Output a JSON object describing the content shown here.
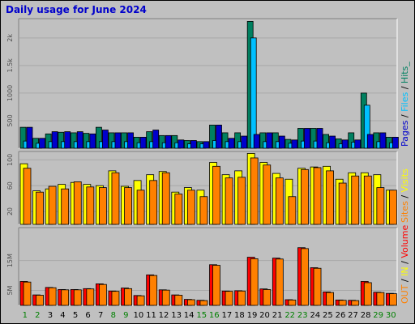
{
  "chart_data": {
    "type": "bar",
    "title": "Daily usage for June 2024",
    "categories": [
      "1",
      "2",
      "3",
      "4",
      "5",
      "6",
      "7",
      "8",
      "9",
      "10",
      "11",
      "12",
      "13",
      "14",
      "15",
      "16",
      "17",
      "18",
      "19",
      "20",
      "21",
      "22",
      "23",
      "24",
      "25",
      "26",
      "27",
      "28",
      "29",
      "30"
    ],
    "weekend_days": [
      "1",
      "2",
      "8",
      "9",
      "15",
      "16",
      "22",
      "23",
      "29",
      "30"
    ],
    "colors": {
      "hits": "#008060",
      "files": "#00c0ff",
      "pages": "#0000cc",
      "visits": "#ffff00",
      "sites": "#ff8000",
      "volume": "#ff0000",
      "in": "#ffff00",
      "out": "#ff8000",
      "outvol": "#ff8000",
      "weekday": "#000000",
      "weekend": "#008000",
      "title": "#0000cc"
    },
    "panels": [
      {
        "name": "hits-files-pages",
        "legend": [
          {
            "key": "pages",
            "text": "Pages",
            "color": "#0000cc"
          },
          {
            "key": "sep1",
            "text": " / ",
            "color": "#000000"
          },
          {
            "key": "files",
            "text": "Files",
            "color": "#00c0ff"
          },
          {
            "key": "sep2",
            "text": " / ",
            "color": "#000000"
          },
          {
            "key": "hits",
            "text": "Hits_",
            "color": "#008060"
          }
        ],
        "yticks": [
          {
            "value": 500,
            "label": "500"
          },
          {
            "value": 1000,
            "label": "1000"
          },
          {
            "value": 1500,
            "label": "1.5k"
          },
          {
            "value": 2000,
            "label": "2k"
          }
        ],
        "ylim": [
          0,
          2350
        ],
        "series": [
          {
            "name": "Hits",
            "color": "#008060",
            "values": [
              380,
              180,
              260,
              290,
              280,
              270,
              380,
              280,
              280,
              200,
              300,
              230,
              230,
              140,
              120,
              420,
              280,
              280,
              2300,
              280,
              280,
              160,
              360,
              360,
              250,
              170,
              280,
              1000,
              280,
              200
            ]
          },
          {
            "name": "Files",
            "color": "#00c0ff",
            "values": [
              130,
              90,
              120,
              120,
              120,
              120,
              120,
              120,
              120,
              100,
              120,
              100,
              100,
              80,
              80,
              140,
              120,
              120,
              2000,
              120,
              120,
              90,
              130,
              130,
              100,
              80,
              110,
              780,
              120,
              100
            ]
          },
          {
            "name": "Pages",
            "color": "#0000cc",
            "values": [
              380,
              180,
              300,
              300,
              300,
              260,
              330,
              280,
              280,
              200,
              330,
              230,
              150,
              140,
              120,
              420,
              180,
              220,
              250,
              280,
              220,
              150,
              360,
              360,
              220,
              150,
              150,
              250,
              280,
              200
            ]
          }
        ]
      },
      {
        "name": "visits-sites",
        "legend": [
          {
            "key": "sites",
            "text": "Sites",
            "color": "#ff8000"
          },
          {
            "key": "sep1",
            "text": " / ",
            "color": "#000000"
          },
          {
            "key": "visits",
            "text": "Visits",
            "color": "#ffff00"
          }
        ],
        "yticks": [
          {
            "value": 20,
            "label": "20"
          },
          {
            "value": 60,
            "label": "60"
          },
          {
            "value": 100,
            "label": "100"
          }
        ],
        "ylim": [
          0,
          113
        ],
        "series": [
          {
            "name": "Visits",
            "color": "#ffff00",
            "values": [
              94,
              52,
              55,
              62,
              65,
              62,
              60,
              83,
              59,
              68,
              77,
              82,
              50,
              57,
              53,
              96,
              77,
              83,
              110,
              96,
              79,
              70,
              87,
              89,
              90,
              70,
              80,
              80,
              77,
              53
            ]
          },
          {
            "name": "Sites",
            "color": "#ff8000",
            "values": [
              87,
              50,
              59,
              55,
              66,
              58,
              57,
              80,
              57,
              53,
              68,
              80,
              47,
              53,
              43,
              90,
              72,
              73,
              103,
              92,
              72,
              43,
              85,
              88,
              83,
              64,
              75,
              75,
              57,
              53
            ]
          }
        ]
      },
      {
        "name": "volume",
        "legend": [
          {
            "key": "out",
            "text": "OUT",
            "color": "#ff8000"
          },
          {
            "key": "sep1",
            "text": " / ",
            "color": "#000000"
          },
          {
            "key": "in",
            "text": "IN",
            "color": "#ffff00"
          },
          {
            "key": "sep2",
            "text": " / ",
            "color": "#000000"
          },
          {
            "key": "volume",
            "text": "Volume",
            "color": "#ff0000"
          }
        ],
        "yticks": [
          {
            "value": 5,
            "label": "5M"
          },
          {
            "value": 15,
            "label": "15M"
          }
        ],
        "ylim": [
          0,
          26
        ],
        "series": [
          {
            "name": "Volume",
            "color": "#ff0000",
            "values": [
              8.0,
              3.5,
              6.0,
              5.3,
              5.3,
              5.6,
              7.2,
              4.8,
              5.8,
              3.3,
              10.2,
              5.2,
              3.5,
              2.0,
              1.7,
              13.6,
              4.8,
              4.9,
              16.1,
              5.5,
              15.8,
              1.9,
              19.3,
              12.6,
              4.5,
              1.8,
              1.7,
              8.0,
              4.4,
              4.0
            ]
          },
          {
            "name": "OUT",
            "color": "#ff8000",
            "values": [
              7.8,
              3.4,
              5.9,
              5.2,
              5.2,
              5.5,
              7.0,
              4.7,
              5.6,
              3.2,
              10.0,
              5.1,
              3.4,
              1.9,
              1.6,
              13.4,
              4.7,
              4.8,
              15.6,
              5.3,
              15.5,
              1.8,
              19.0,
              12.4,
              4.3,
              1.7,
              1.6,
              7.6,
              4.3,
              3.9
            ]
          }
        ]
      }
    ]
  }
}
